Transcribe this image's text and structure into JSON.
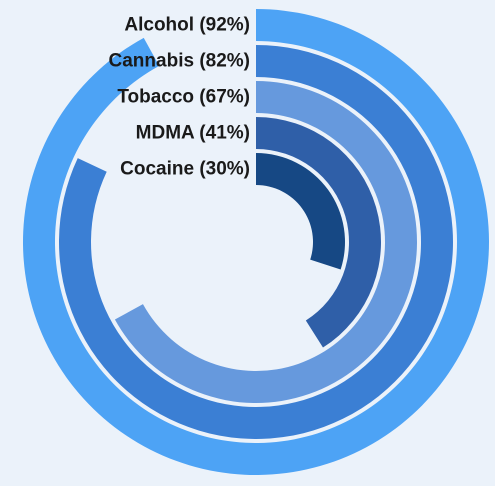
{
  "chart_data": {
    "type": "radial-bar",
    "title": "",
    "max_value": 100,
    "series": [
      {
        "name": "Alcohol",
        "label": "Alcohol (92%)",
        "value": 92,
        "color": "#4da3f5"
      },
      {
        "name": "Cannabis",
        "label": "Cannabis (82%)",
        "value": 82,
        "color": "#3b7fd4"
      },
      {
        "name": "Tobacco",
        "label": "Tobacco (67%)",
        "value": 67,
        "color": "#6699dd"
      },
      {
        "name": "MDMA",
        "label": "MDMA (41%)",
        "value": 41,
        "color": "#2f5fa8"
      },
      {
        "name": "Cocaine",
        "label": "Cocaine (30%)",
        "value": 30,
        "color": "#164884"
      }
    ]
  }
}
